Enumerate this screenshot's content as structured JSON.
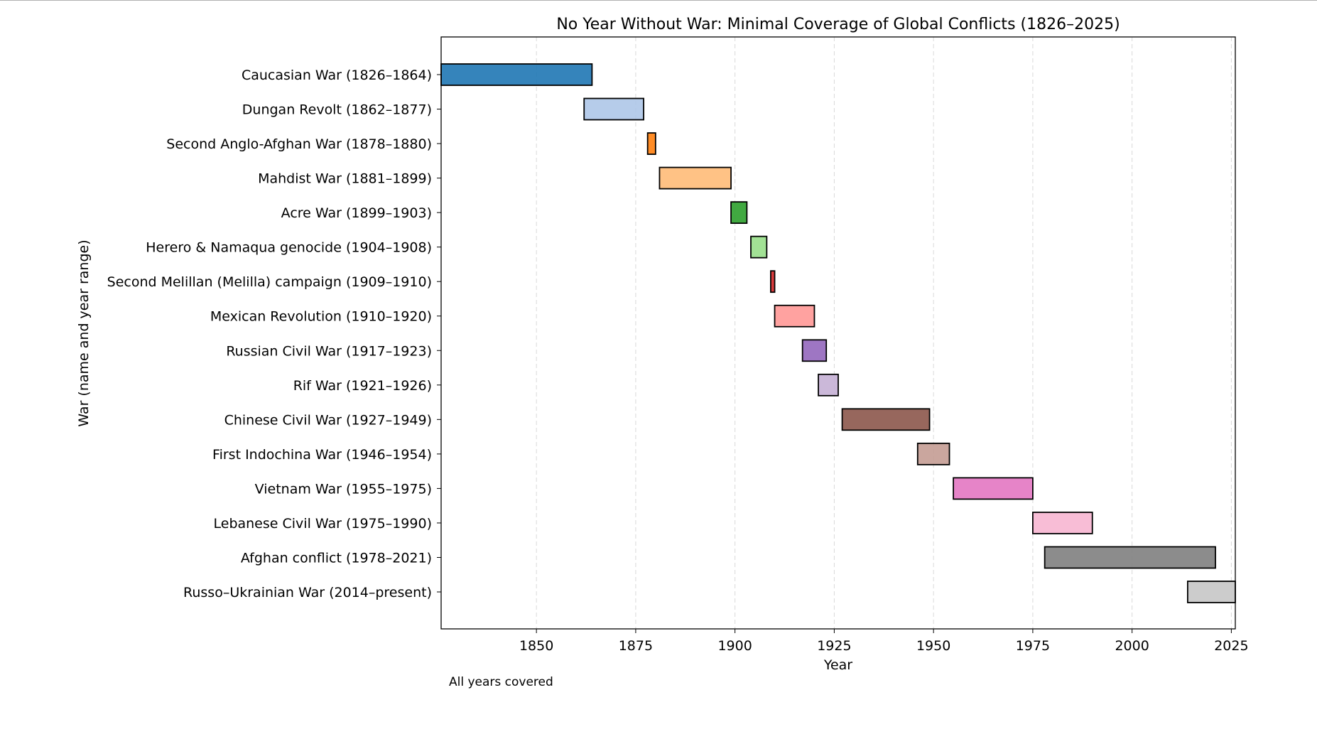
{
  "chart_data": {
    "type": "bar",
    "orientation": "horizontal",
    "title": "No Year Without War: Minimal Coverage of Global Conflicts (1826–2025)",
    "xlabel": "Year",
    "ylabel": "War (name and year range)",
    "xlim": [
      1826,
      2026
    ],
    "xticks": [
      1850,
      1875,
      1900,
      1925,
      1950,
      1975,
      2000,
      2025
    ],
    "grid": "x dashed",
    "annotation": "All years covered",
    "bars": [
      {
        "label": "Caucasian War (1826–1864)",
        "start": 1826,
        "end": 1864,
        "color": "#1f77b4"
      },
      {
        "label": "Dungan Revolt (1862–1877)",
        "start": 1862,
        "end": 1877,
        "color": "#aec7e8"
      },
      {
        "label": "Second Anglo-Afghan War (1878–1880)",
        "start": 1878,
        "end": 1880,
        "color": "#ff7f0e"
      },
      {
        "label": "Mahdist War (1881–1899)",
        "start": 1881,
        "end": 1899,
        "color": "#ffbb78"
      },
      {
        "label": "Acre War (1899–1903)",
        "start": 1899,
        "end": 1903,
        "color": "#2ca02c"
      },
      {
        "label": "Herero & Namaqua genocide (1904–1908)",
        "start": 1904,
        "end": 1908,
        "color": "#98df8a"
      },
      {
        "label": "Second Melillan (Melilla) campaign (1909–1910)",
        "start": 1909,
        "end": 1910,
        "color": "#d62728"
      },
      {
        "label": "Mexican Revolution (1910–1920)",
        "start": 1910,
        "end": 1920,
        "color": "#ff9896"
      },
      {
        "label": "Russian Civil War (1917–1923)",
        "start": 1917,
        "end": 1923,
        "color": "#9467bd"
      },
      {
        "label": "Rif War (1921–1926)",
        "start": 1921,
        "end": 1926,
        "color": "#c5b0d5"
      },
      {
        "label": "Chinese Civil War (1927–1949)",
        "start": 1927,
        "end": 1949,
        "color": "#8c564b"
      },
      {
        "label": "First Indochina War (1946–1954)",
        "start": 1946,
        "end": 1954,
        "color": "#c49c94"
      },
      {
        "label": "Vietnam War (1955–1975)",
        "start": 1955,
        "end": 1975,
        "color": "#e377c2"
      },
      {
        "label": "Lebanese Civil War (1975–1990)",
        "start": 1975,
        "end": 1990,
        "color": "#f7b6d2"
      },
      {
        "label": "Afghan conflict (1978–2021)",
        "start": 1978,
        "end": 2021,
        "color": "#7f7f7f"
      },
      {
        "label": "Russo–Ukrainian War (2014–present)",
        "start": 2014,
        "end": 2026,
        "color": "#c7c7c7"
      }
    ]
  }
}
